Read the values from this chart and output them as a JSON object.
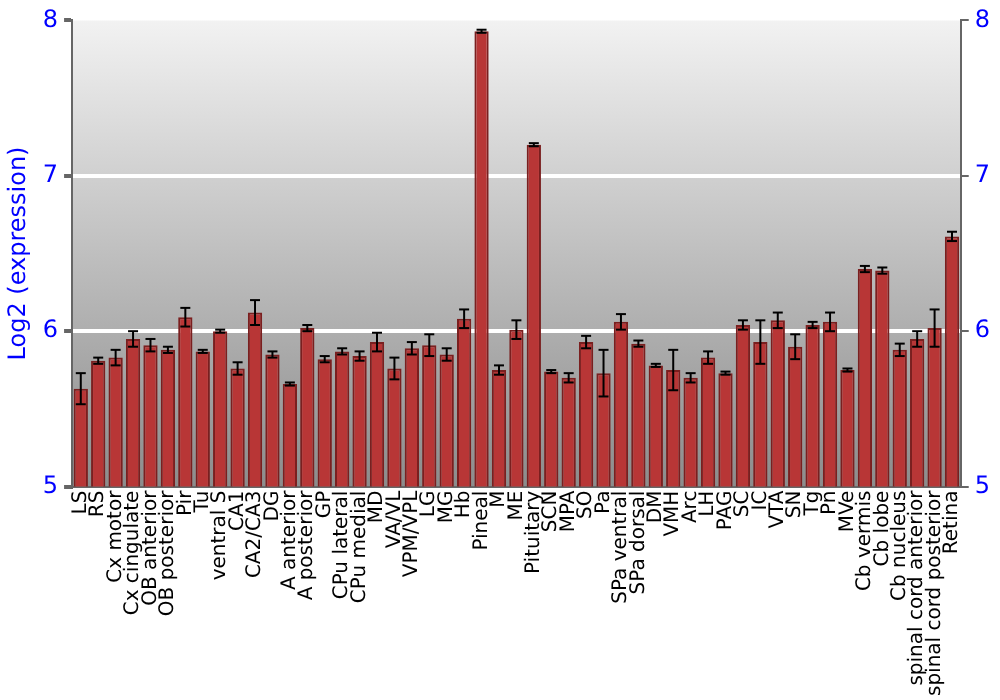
{
  "chart_data": {
    "type": "bar",
    "ylabel": "Log2 (expression)",
    "categories": [
      "LS",
      "RS",
      "Cx motor",
      "Cx cingulate",
      "OB anterior",
      "OB posterior",
      "Pir",
      "Tu",
      "ventral S",
      "CA1",
      "CA2/CA3",
      "DG",
      "A anterior",
      "A posterior",
      "GP",
      "CPu lateral",
      "CPu medial",
      "MD",
      "VA/VL",
      "VPM/VPL",
      "LG",
      "MG",
      "Hb",
      "Pineal",
      "M",
      "ME",
      "Pituitary",
      "SCN",
      "MPA",
      "SO",
      "Pa",
      "SPa ventral",
      "SPa dorsal",
      "DM",
      "VMH",
      "Arc",
      "LH",
      "PAG",
      "SC",
      "IC",
      "VTA",
      "SN",
      "Tg",
      "Pn",
      "MVe",
      "Cb vermis",
      "Cb lobe",
      "Cb nucleus",
      "spinal cord anterior",
      "spinal cord posterior",
      "Retina"
    ],
    "values": [
      5.63,
      5.81,
      5.83,
      5.95,
      5.91,
      5.88,
      6.09,
      5.87,
      6.0,
      5.76,
      6.12,
      5.85,
      5.66,
      6.02,
      5.82,
      5.87,
      5.84,
      5.93,
      5.76,
      5.89,
      5.91,
      5.85,
      6.08,
      7.93,
      5.75,
      6.01,
      7.2,
      5.74,
      5.7,
      5.93,
      5.73,
      6.06,
      5.92,
      5.78,
      5.75,
      5.7,
      5.83,
      5.73,
      6.04,
      5.93,
      6.07,
      5.9,
      6.04,
      6.06,
      5.75,
      6.4,
      6.39,
      5.88,
      5.95,
      6.02,
      6.61
    ],
    "errors": [
      0.1,
      0.02,
      0.05,
      0.05,
      0.04,
      0.02,
      0.06,
      0.01,
      0.01,
      0.04,
      0.08,
      0.02,
      0.01,
      0.02,
      0.02,
      0.02,
      0.03,
      0.06,
      0.07,
      0.04,
      0.07,
      0.04,
      0.06,
      0.01,
      0.03,
      0.06,
      0.01,
      0.01,
      0.03,
      0.04,
      0.15,
      0.05,
      0.02,
      0.01,
      0.13,
      0.03,
      0.04,
      0.01,
      0.03,
      0.14,
      0.05,
      0.08,
      0.02,
      0.06,
      0.01,
      0.02,
      0.02,
      0.04,
      0.05,
      0.12,
      0.03
    ],
    "color": "#b83636",
    "ylim": [
      5,
      8
    ],
    "yticks": [
      5,
      6,
      7,
      8
    ],
    "y2lim": [
      5,
      8
    ],
    "y2ticks": [
      5,
      6,
      7,
      8
    ],
    "grid": "y"
  }
}
